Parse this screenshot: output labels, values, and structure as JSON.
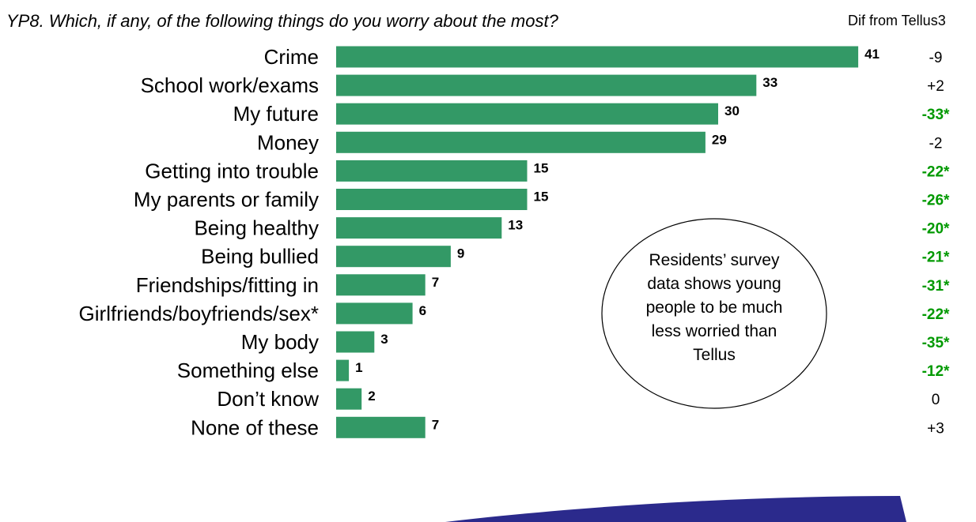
{
  "question": "YP8. Which, if any, of the following things do you worry about the most?",
  "dif_header": "Dif from Tellus3",
  "callout": [
    "Residents’ survey",
    "data shows young",
    "people to be much",
    "less worried than",
    "Tellus"
  ],
  "colors": {
    "bar": "#339966",
    "significant": "#009900",
    "normal": "#000000",
    "globe": "#2b2a8c"
  },
  "chart_data": {
    "type": "bar",
    "orientation": "horizontal",
    "xlim": [
      0,
      45
    ],
    "categories": [
      "Crime",
      "School work/exams",
      "My future",
      "Money",
      "Getting into trouble",
      "My parents or family",
      "Being healthy",
      "Being bullied",
      "Friendships/fitting in",
      "Girlfriends/boyfriends/sex*",
      "My body",
      "Something else",
      "Don’t know",
      "None of these"
    ],
    "values": [
      41,
      33,
      30,
      29,
      15,
      15,
      13,
      9,
      7,
      6,
      3,
      1,
      2,
      7
    ],
    "dif": [
      "-9",
      "+2",
      "-33*",
      "-2",
      "-22*",
      "-26*",
      "-20*",
      "-21*",
      "-31*",
      "-22*",
      "-35*",
      "-12*",
      "0",
      "+3"
    ],
    "dif_significant": [
      false,
      false,
      true,
      false,
      true,
      true,
      true,
      true,
      true,
      true,
      true,
      true,
      false,
      false
    ]
  }
}
